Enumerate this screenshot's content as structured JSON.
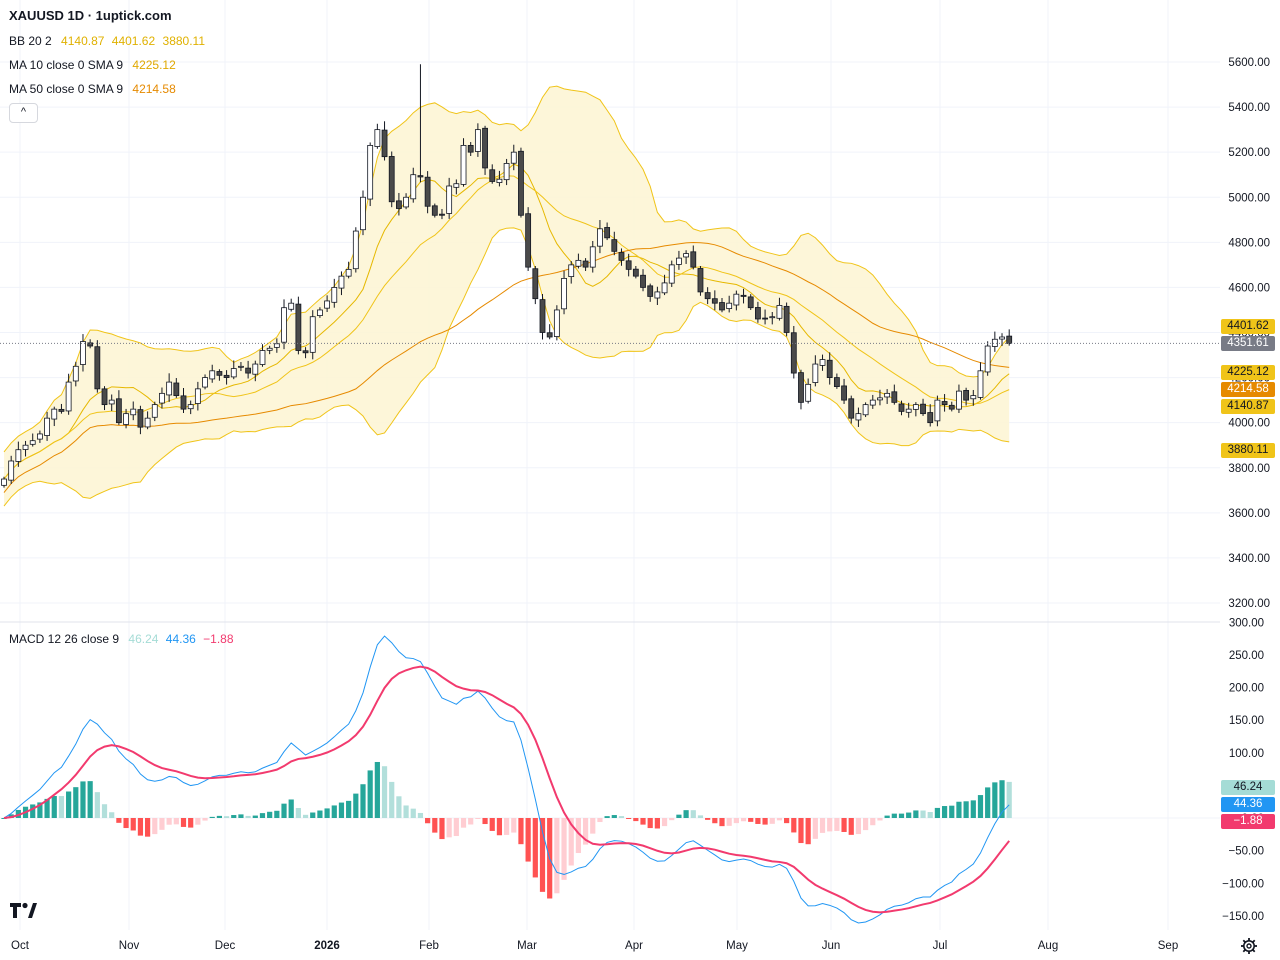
{
  "title": "XAUUSD 1D · 1uptick.com",
  "indicators": {
    "bb": {
      "name": "BB 20 2",
      "values": [
        "4140.87",
        "4401.62",
        "3880.11"
      ],
      "color": "#e8c53a"
    },
    "ma10": {
      "name": "MA 10 close 0 SMA 9",
      "value": "4225.12",
      "color": "#e6b800"
    },
    "ma50": {
      "name": "MA 50 close 0 SMA 9",
      "value": "4214.58",
      "color": "#e68a00"
    },
    "macd": {
      "name": "MACD 12 26 close 9",
      "values": [
        "46.24",
        "44.36",
        "−1.88"
      ],
      "colors": [
        "#a5dcd6",
        "#2196f3",
        "#f23a6e"
      ]
    }
  },
  "collapse_label": "^",
  "price_tags": [
    {
      "label": "4401.62",
      "bg": "#f0c419",
      "fg": "#131722"
    },
    {
      "label": "4351.61",
      "bg": "#787b86",
      "fg": "#ffffff"
    },
    {
      "label": "4225.12",
      "bg": "#f0c419",
      "fg": "#131722"
    },
    {
      "label": "4214.58",
      "bg": "#e68a00",
      "fg": "#ffffff"
    },
    {
      "label": "4140.87",
      "bg": "#f0c419",
      "fg": "#131722"
    },
    {
      "label": "3880.11",
      "bg": "#f0c419",
      "fg": "#131722"
    }
  ],
  "macd_tags": [
    {
      "label": "46.24",
      "bg": "#a5dcd6",
      "fg": "#131722"
    },
    {
      "label": "44.36",
      "bg": "#2196f3",
      "fg": "#ffffff"
    },
    {
      "label": "−1.88",
      "bg": "#f23a6e",
      "fg": "#ffffff"
    }
  ],
  "chart_data": {
    "type": "candlestick",
    "price_axis": {
      "ticks": [
        "5600.00",
        "5400.00",
        "5200.00",
        "5000.00",
        "4800.00",
        "4600.00",
        "4400.00",
        "4200.00",
        "4000.00",
        "3800.00",
        "3600.00",
        "3400.00",
        "3200.00"
      ],
      "range": [
        3130,
        5650
      ]
    },
    "macd_axis": {
      "ticks": [
        "300.00",
        "250.00",
        "200.00",
        "150.00",
        "100.00",
        "50.00",
        "0.00",
        "−50.00",
        "−100.00",
        "−150.00"
      ],
      "range": [
        -165,
        300
      ]
    },
    "time_axis": {
      "labels": [
        "Oct",
        "Nov",
        "Dec",
        "2026",
        "Feb",
        "Mar",
        "Apr",
        "May",
        "Jun",
        "Jul",
        "Aug",
        "Sep"
      ]
    },
    "last_price": 4351.61,
    "close_series": [
      3750,
      3830,
      3880,
      3900,
      3920,
      3950,
      4020,
      4060,
      4050,
      4180,
      4250,
      4360,
      4340,
      4150,
      4080,
      4100,
      4000,
      4040,
      4060,
      3980,
      4020,
      4080,
      4130,
      4180,
      4120,
      4060,
      4080,
      4150,
      4200,
      4230,
      4210,
      4200,
      4240,
      4250,
      4220,
      4260,
      4320,
      4330,
      4350,
      4510,
      4530,
      4320,
      4310,
      4470,
      4500,
      4540,
      4600,
      4650,
      4680,
      4850,
      5000,
      5230,
      5300,
      5180,
      4980,
      4950,
      5000,
      5100,
      5090,
      4960,
      4920,
      4920,
      5050,
      5060,
      5230,
      5200,
      5300,
      5130,
      5070,
      5080,
      5150,
      5200,
      4920,
      4690,
      4550,
      4400,
      4380,
      4500,
      4640,
      4700,
      4720,
      4690,
      4780,
      4860,
      4820,
      4760,
      4720,
      4680,
      4650,
      4600,
      4560,
      4580,
      4620,
      4700,
      4730,
      4750,
      4690,
      4580,
      4550,
      4530,
      4500,
      4530,
      4570,
      4560,
      4510,
      4460,
      4460,
      4470,
      4520,
      4400,
      4220,
      4090,
      4170,
      4260,
      4280,
      4200,
      4160,
      4100,
      4020,
      4040,
      4080,
      4100,
      4110,
      4130,
      4090,
      4050,
      4060,
      4080,
      4040,
      4000,
      4100,
      4080,
      4060,
      4140,
      4100,
      4120,
      4230,
      4340,
      4370,
      4380,
      4351.61
    ]
  }
}
